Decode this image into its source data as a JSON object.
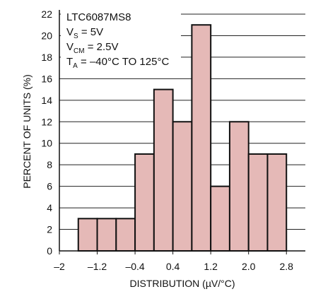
{
  "chart_data": {
    "type": "bar",
    "title": "",
    "xlabel": "DISTRIBUTION (µV/°C)",
    "ylabel": "PERCENT OF UNITS (%)",
    "xlim": [
      -2,
      3.2
    ],
    "ylim": [
      0,
      22
    ],
    "x_ticks": [
      "–2",
      "–1.2",
      "–0.4",
      "0.4",
      "1.2",
      "2.0",
      "2.8"
    ],
    "y_ticks": [
      "0",
      "2",
      "4",
      "6",
      "8",
      "10",
      "12",
      "14",
      "16",
      "18",
      "20",
      "22"
    ],
    "bin_width": 0.4,
    "bins": [
      {
        "x_start": -1.6,
        "value": 3
      },
      {
        "x_start": -1.2,
        "value": 3
      },
      {
        "x_start": -0.8,
        "value": 3
      },
      {
        "x_start": -0.4,
        "value": 9
      },
      {
        "x_start": 0.0,
        "value": 15
      },
      {
        "x_start": 0.4,
        "value": 12
      },
      {
        "x_start": 0.8,
        "value": 21
      },
      {
        "x_start": 1.2,
        "value": 6
      },
      {
        "x_start": 1.6,
        "value": 12
      },
      {
        "x_start": 2.0,
        "value": 9
      },
      {
        "x_start": 2.4,
        "value": 9
      }
    ],
    "grid": "horizontal",
    "bar_fill": "#e5b9b7",
    "bar_stroke": "#111111",
    "annotation": {
      "line1": "LTC6087MS8",
      "line2": {
        "main": "V",
        "sub": "S",
        "rest": " = 5V"
      },
      "line3": {
        "main": "V",
        "sub": "CM",
        "rest": " = 2.5V"
      },
      "line4": {
        "main": "T",
        "sub": "A",
        "rest": " = –40°C TO 125°C"
      }
    }
  }
}
